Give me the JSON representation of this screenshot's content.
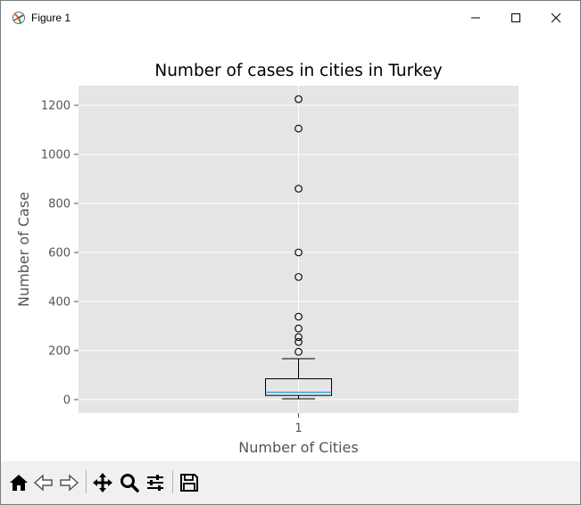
{
  "window": {
    "title": "Figure 1",
    "icons": [
      "matplotlib-icon",
      "minimize-icon",
      "maximize-icon",
      "close-icon"
    ]
  },
  "toolbar": {
    "tools": [
      "home-icon",
      "back-icon",
      "forward-icon",
      "pan-icon",
      "zoom-icon",
      "configure-subplots-icon",
      "save-icon"
    ]
  },
  "chart_data": {
    "type": "box",
    "title": "Number of cases in cities in Turkey",
    "xlabel": "Number of Cities",
    "ylabel": "Number of Case",
    "categories": [
      "1"
    ],
    "ylim": [
      -55,
      1280
    ],
    "yticks": [
      0,
      200,
      400,
      600,
      800,
      1000,
      1200
    ],
    "grid": true,
    "box": {
      "whisker_low": 3,
      "q1": 17,
      "median": 30,
      "q3": 85,
      "whisker_high": 167
    },
    "outliers": [
      195,
      235,
      255,
      290,
      338,
      500,
      600,
      860,
      1105,
      1225
    ],
    "colors": {
      "axes_bg": "#e5e5e5",
      "grid": "#ffffff",
      "median": "#2a9ae0",
      "box": "#000000",
      "text": "#555555"
    }
  }
}
